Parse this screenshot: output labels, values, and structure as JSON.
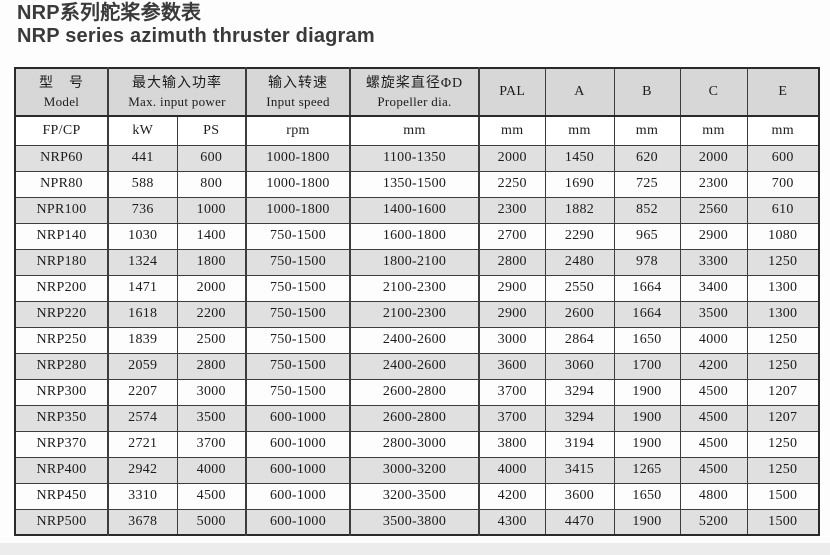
{
  "title": {
    "zh": "NRP系列舵桨参数表",
    "en": "NRP series azimuth thruster diagram"
  },
  "table": {
    "header": {
      "model": {
        "zh": "型　号",
        "en": "Model"
      },
      "power": {
        "zh": "最大输入功率",
        "en": "Max. input power"
      },
      "speed": {
        "zh": "输入转速",
        "en": "Input speed"
      },
      "dia": {
        "zh": "螺旋桨直径ΦD",
        "en": "Propeller dia."
      },
      "pal": "PAL",
      "a": "A",
      "b": "B",
      "c": "C",
      "e": "E"
    },
    "units": [
      "FP/CP",
      "kW",
      "PS",
      "rpm",
      "mm",
      "mm",
      "mm",
      "mm",
      "mm",
      "mm"
    ],
    "rows": [
      [
        "NRP60",
        "441",
        "600",
        "1000-1800",
        "1100-1350",
        "2000",
        "1450",
        "620",
        "2000",
        "600"
      ],
      [
        "NPR80",
        "588",
        "800",
        "1000-1800",
        "1350-1500",
        "2250",
        "1690",
        "725",
        "2300",
        "700"
      ],
      [
        "NPR100",
        "736",
        "1000",
        "1000-1800",
        "1400-1600",
        "2300",
        "1882",
        "852",
        "2560",
        "610"
      ],
      [
        "NRP140",
        "1030",
        "1400",
        "750-1500",
        "1600-1800",
        "2700",
        "2290",
        "965",
        "2900",
        "1080"
      ],
      [
        "NRP180",
        "1324",
        "1800",
        "750-1500",
        "1800-2100",
        "2800",
        "2480",
        "978",
        "3300",
        "1250"
      ],
      [
        "NRP200",
        "1471",
        "2000",
        "750-1500",
        "2100-2300",
        "2900",
        "2550",
        "1664",
        "3400",
        "1300"
      ],
      [
        "NRP220",
        "1618",
        "2200",
        "750-1500",
        "2100-2300",
        "2900",
        "2600",
        "1664",
        "3500",
        "1300"
      ],
      [
        "NRP250",
        "1839",
        "2500",
        "750-1500",
        "2400-2600",
        "3000",
        "2864",
        "1650",
        "4000",
        "1250"
      ],
      [
        "NRP280",
        "2059",
        "2800",
        "750-1500",
        "2400-2600",
        "3600",
        "3060",
        "1700",
        "4200",
        "1250"
      ],
      [
        "NRP300",
        "2207",
        "3000",
        "750-1500",
        "2600-2800",
        "3700",
        "3294",
        "1900",
        "4500",
        "1207"
      ],
      [
        "NRP350",
        "2574",
        "3500",
        "600-1000",
        "2600-2800",
        "3700",
        "3294",
        "1900",
        "4500",
        "1207"
      ],
      [
        "NRP370",
        "2721",
        "3700",
        "600-1000",
        "2800-3000",
        "3800",
        "3194",
        "1900",
        "4500",
        "1250"
      ],
      [
        "NRP400",
        "2942",
        "4000",
        "600-1000",
        "3000-3200",
        "4000",
        "3415",
        "1265",
        "4500",
        "1250"
      ],
      [
        "NRP450",
        "3310",
        "4500",
        "600-1000",
        "3200-3500",
        "4200",
        "3600",
        "1650",
        "4800",
        "1500"
      ],
      [
        "NRP500",
        "3678",
        "5000",
        "600-1000",
        "3500-3800",
        "4300",
        "4470",
        "1900",
        "5200",
        "1500"
      ]
    ]
  },
  "colors": {
    "header_bg": "#d7d7d7",
    "stripe_bg": "#e0e0e0",
    "row_bg": "#fdfdfd",
    "border": "#3d3d3d",
    "text": "#1c1c1c",
    "title_text": "#3a3a3a",
    "footer_band": "#ececec"
  }
}
